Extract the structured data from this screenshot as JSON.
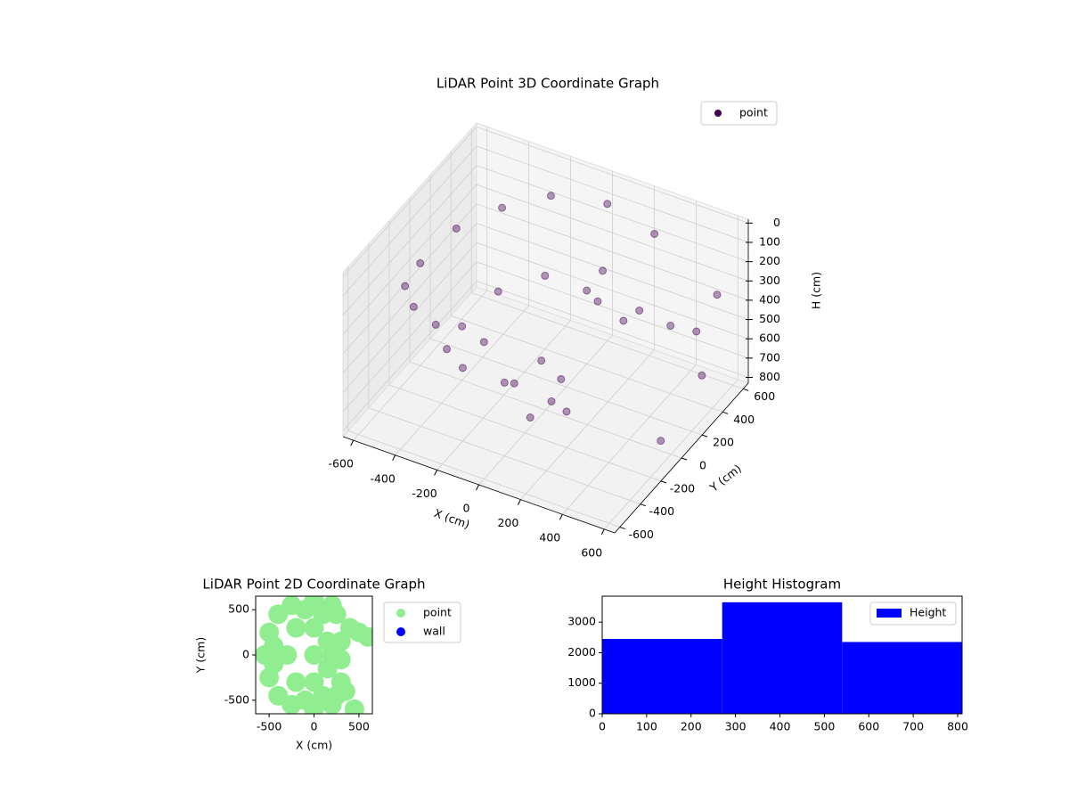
{
  "chart_data": [
    {
      "type": "scatter3d",
      "title": "LiDAR Point 3D Coordinate Graph",
      "x_label": "X (cm)",
      "y_label": "Y (cm)",
      "z_label": "H (cm)",
      "xlim": [
        -650,
        650
      ],
      "ylim": [
        -650,
        650
      ],
      "zlim": [
        830,
        -20
      ],
      "xticks": [
        -600,
        -400,
        -200,
        0,
        200,
        400,
        600
      ],
      "yticks": [
        -600,
        -400,
        -200,
        0,
        200,
        400,
        600
      ],
      "zticks": [
        0,
        100,
        200,
        300,
        400,
        500,
        600,
        700,
        800
      ],
      "legend": "upper right",
      "series": [
        {
          "name": "point",
          "color": "#440154",
          "x": [
            -600,
            -550,
            -550,
            -420,
            -420,
            -250,
            -250,
            0,
            0,
            250,
            250,
            -400,
            -350,
            -350,
            -200,
            -200,
            0,
            0,
            200,
            200,
            -150,
            0,
            0,
            100,
            350,
            450,
            500,
            600,
            550,
            200,
            150,
            600
          ],
          "y": [
            0,
            -250,
            250,
            -430,
            430,
            -560,
            560,
            -600,
            600,
            -550,
            550,
            0,
            -250,
            250,
            -400,
            400,
            -400,
            400,
            -350,
            350,
            0,
            -150,
            150,
            0,
            200,
            300,
            450,
            300,
            550,
            100,
            250,
            -100
          ],
          "z": [
            300,
            250,
            250,
            200,
            200,
            150,
            150,
            120,
            120,
            150,
            150,
            550,
            500,
            500,
            450,
            450,
            450,
            450,
            500,
            500,
            750,
            780,
            760,
            800,
            300,
            400,
            500,
            600,
            350,
            250,
            200,
            700
          ]
        }
      ]
    },
    {
      "type": "scatter",
      "title": "LiDAR Point 2D Coordinate Graph",
      "x_label": "X (cm)",
      "y_label": "Y (cm)",
      "xlim": [
        -650,
        650
      ],
      "ylim": [
        -650,
        650
      ],
      "xticks": [
        -500,
        0,
        500
      ],
      "yticks": [
        -500,
        0,
        500
      ],
      "legend": "outside upper right",
      "series": [
        {
          "name": "point",
          "color": "#90ee90",
          "x": [
            -550,
            -500,
            -500,
            -400,
            -400,
            -250,
            -250,
            0,
            0,
            200,
            200,
            -300,
            -200,
            -200,
            0,
            0,
            0,
            150,
            150,
            250,
            250,
            200,
            300,
            300,
            400,
            500,
            600,
            300,
            350,
            450,
            -100,
            -100,
            100,
            100,
            -450,
            -450
          ],
          "y": [
            0,
            -250,
            250,
            -450,
            450,
            -550,
            550,
            -600,
            600,
            -550,
            550,
            0,
            -300,
            300,
            -300,
            300,
            0,
            -150,
            150,
            -450,
            450,
            0,
            -50,
            150,
            300,
            250,
            200,
            -300,
            -400,
            -600,
            -500,
            500,
            -450,
            450,
            -100,
            100
          ]
        },
        {
          "name": "wall",
          "color": "#0000ff",
          "x": [],
          "y": []
        }
      ]
    },
    {
      "type": "histogram",
      "title": "Height Histogram",
      "xlim": [
        0,
        810
      ],
      "ylim": [
        0,
        3850
      ],
      "xticks": [
        0,
        100,
        200,
        300,
        400,
        500,
        600,
        700,
        800
      ],
      "yticks": [
        0,
        1000,
        2000,
        3000
      ],
      "legend": "upper right",
      "series": [
        {
          "name": "Height",
          "color": "#0000ff",
          "bins": [
            0,
            270,
            540,
            810
          ],
          "values": [
            2450,
            3650,
            2350
          ]
        }
      ]
    }
  ]
}
